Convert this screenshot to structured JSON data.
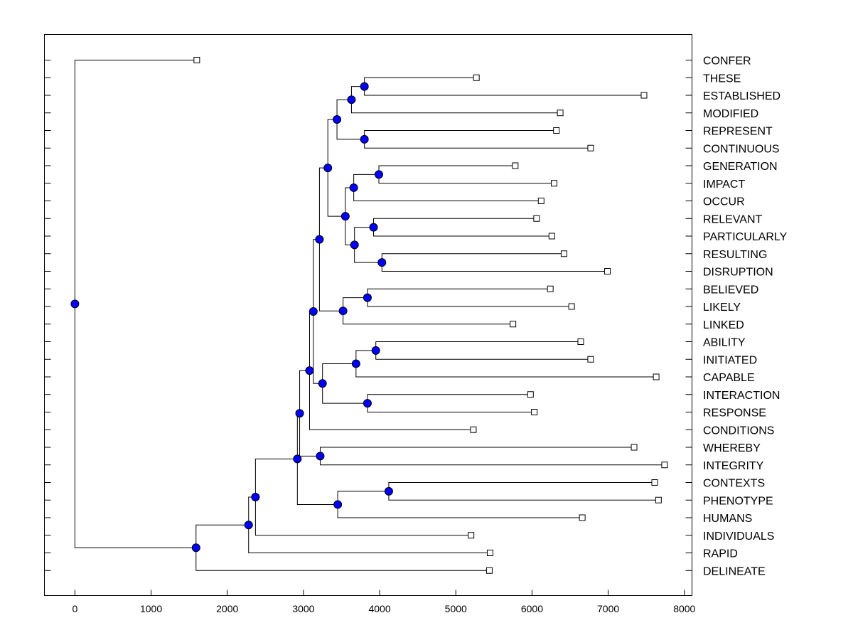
{
  "chart_data": {
    "type": "dendrogram",
    "title": "",
    "xlabel": "",
    "ylabel": "",
    "xlim": [
      -400,
      8100
    ],
    "xticks": [
      0,
      1000,
      2000,
      3000,
      4000,
      5000,
      6000,
      7000,
      8000
    ],
    "xtick_labels": [
      "0",
      "1000",
      "2000",
      "3000",
      "4000",
      "5000",
      "6000",
      "7000",
      "8000"
    ],
    "node_color": "#0000ff",
    "leaves": [
      {
        "label": "CONFER",
        "x": 1600
      },
      {
        "label": "THESE",
        "x": 5270
      },
      {
        "label": "ESTABLISHED",
        "x": 7470
      },
      {
        "label": "MODIFIED",
        "x": 6370
      },
      {
        "label": "REPRESENT",
        "x": 6320
      },
      {
        "label": "CONTINUOUS",
        "x": 6770
      },
      {
        "label": "GENERATION",
        "x": 5780
      },
      {
        "label": "IMPACT",
        "x": 6290
      },
      {
        "label": "OCCUR",
        "x": 6120
      },
      {
        "label": "RELEVANT",
        "x": 6060
      },
      {
        "label": "PARTICULARLY",
        "x": 6260
      },
      {
        "label": "RESULTING",
        "x": 6420
      },
      {
        "label": "DISRUPTION",
        "x": 6990
      },
      {
        "label": "BELIEVED",
        "x": 6240
      },
      {
        "label": "LIKELY",
        "x": 6520
      },
      {
        "label": "LINKED",
        "x": 5750
      },
      {
        "label": "ABILITY",
        "x": 6640
      },
      {
        "label": "INITIATED",
        "x": 6770
      },
      {
        "label": "CAPABLE",
        "x": 7630
      },
      {
        "label": "INTERACTION",
        "x": 5980
      },
      {
        "label": "RESPONSE",
        "x": 6030
      },
      {
        "label": "CONDITIONS",
        "x": 5230
      },
      {
        "label": "WHEREBY",
        "x": 7340
      },
      {
        "label": "INTEGRITY",
        "x": 7740
      },
      {
        "label": "CONTEXTS",
        "x": 7610
      },
      {
        "label": "PHENOTYPE",
        "x": 7660
      },
      {
        "label": "HUMANS",
        "x": 6660
      },
      {
        "label": "INDIVIDUALS",
        "x": 5200
      },
      {
        "label": "RAPID",
        "x": 5450
      },
      {
        "label": "DELINEATE",
        "x": 5440
      }
    ],
    "nodes": [
      {
        "id": "N1",
        "x": 3800,
        "children": [
          "L1",
          "L2"
        ]
      },
      {
        "id": "N2",
        "x": 3630,
        "children": [
          "N1",
          "L3"
        ]
      },
      {
        "id": "N3",
        "x": 3800,
        "children": [
          "L4",
          "L5"
        ]
      },
      {
        "id": "N4",
        "x": 3440,
        "children": [
          "N2",
          "N3"
        ]
      },
      {
        "id": "N5",
        "x": 3990,
        "children": [
          "L6",
          "L7"
        ]
      },
      {
        "id": "N6",
        "x": 3660,
        "children": [
          "N5",
          "L8"
        ]
      },
      {
        "id": "N7",
        "x": 3920,
        "children": [
          "L9",
          "L10"
        ]
      },
      {
        "id": "N8",
        "x": 4030,
        "children": [
          "L11",
          "L12"
        ]
      },
      {
        "id": "N9",
        "x": 3670,
        "children": [
          "N7",
          "N8"
        ]
      },
      {
        "id": "N10",
        "x": 3550,
        "children": [
          "N6",
          "N9"
        ]
      },
      {
        "id": "N11",
        "x": 3320,
        "children": [
          "N4",
          "N10"
        ]
      },
      {
        "id": "N12",
        "x": 3840,
        "children": [
          "L13",
          "L14"
        ]
      },
      {
        "id": "N13",
        "x": 3520,
        "children": [
          "N12",
          "L15"
        ]
      },
      {
        "id": "N14",
        "x": 3210,
        "children": [
          "N11",
          "N13"
        ]
      },
      {
        "id": "N15",
        "x": 3950,
        "children": [
          "L16",
          "L17"
        ]
      },
      {
        "id": "N16",
        "x": 3690,
        "children": [
          "N15",
          "L18"
        ]
      },
      {
        "id": "N17",
        "x": 3840,
        "children": [
          "L19",
          "L20"
        ]
      },
      {
        "id": "N18",
        "x": 3250,
        "children": [
          "N16",
          "N17"
        ]
      },
      {
        "id": "N19",
        "x": 3130,
        "children": [
          "N14",
          "N18"
        ]
      },
      {
        "id": "N20",
        "x": 3080,
        "children": [
          "N19",
          "L21"
        ]
      },
      {
        "id": "N21",
        "x": 3220,
        "children": [
          "L22",
          "L23"
        ]
      },
      {
        "id": "N22",
        "x": 2950,
        "children": [
          "N20",
          "N21"
        ]
      },
      {
        "id": "N23",
        "x": 4120,
        "children": [
          "L24",
          "L25"
        ]
      },
      {
        "id": "N24",
        "x": 3450,
        "children": [
          "N23",
          "L26"
        ]
      },
      {
        "id": "N25",
        "x": 2920,
        "children": [
          "N22",
          "N24"
        ]
      },
      {
        "id": "N26",
        "x": 2370,
        "children": [
          "N25",
          "L27"
        ]
      },
      {
        "id": "N27",
        "x": 2280,
        "children": [
          "N26",
          "L28"
        ]
      },
      {
        "id": "N28",
        "x": 1590,
        "children": [
          "N27",
          "L29"
        ]
      },
      {
        "id": "N29",
        "x": 0,
        "children": [
          "L0",
          "N28"
        ]
      }
    ]
  }
}
